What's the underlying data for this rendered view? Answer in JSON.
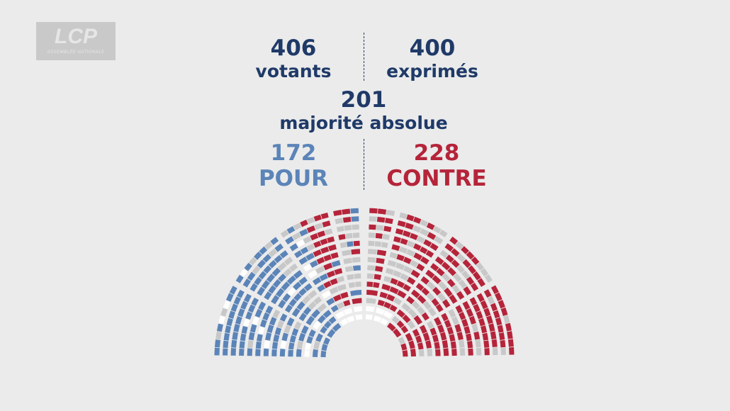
{
  "logo": {
    "brand": "LCP",
    "subtitle": "ASSEMBLÉE NATIONALE"
  },
  "stats": {
    "votants": {
      "value": "406",
      "label": "votants"
    },
    "exprimes": {
      "value": "400",
      "label": "exprimés"
    },
    "majorite": {
      "value": "201",
      "label": "majorité absolue"
    },
    "pour": {
      "value": "172",
      "label": "POUR"
    },
    "contre": {
      "value": "228",
      "label": "CONTRE"
    }
  },
  "colors": {
    "navy": "#1f3a68",
    "pour": "#5b84b8",
    "contre": "#b5243a",
    "absent": "#c8c8c8",
    "empty": "#ffffff",
    "background": "#ebebeb"
  },
  "chart_data": {
    "type": "hemicycle",
    "total_seats": 577,
    "series": [
      {
        "name": "POUR",
        "value": 172,
        "color": "#5b84b8"
      },
      {
        "name": "CONTRE",
        "value": 228,
        "color": "#b5243a"
      }
    ],
    "votants": 406,
    "exprimes": 400,
    "majorite_absolue": 201
  }
}
